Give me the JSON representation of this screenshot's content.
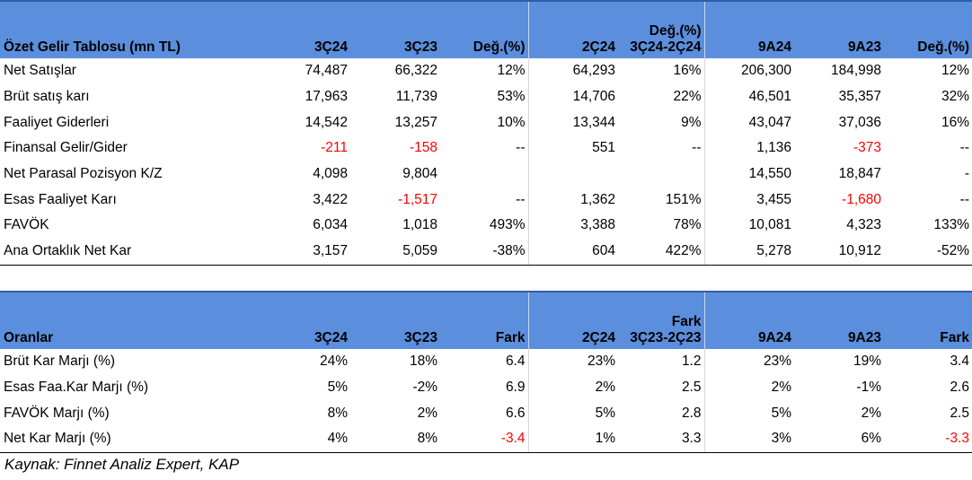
{
  "income": {
    "headers": [
      "Özet Gelir Tablosu (mn TL)",
      "3Ç24",
      "3Ç23",
      "Değ.(%)",
      "2Ç24",
      "Değ.(%)\n3Ç24-2Ç24",
      "9A24",
      "9A23",
      "Değ.(%)"
    ],
    "rows": [
      [
        "Net Satışlar",
        "74,487",
        "66,322",
        "12%",
        "64,293",
        "16%",
        "206,300",
        "184,998",
        "12%"
      ],
      [
        "Brüt satış karı",
        "17,963",
        "11,739",
        "53%",
        "14,706",
        "22%",
        "46,501",
        "35,357",
        "32%"
      ],
      [
        "Faaliyet Giderleri",
        "14,542",
        "13,257",
        "10%",
        "13,344",
        "9%",
        "43,047",
        "37,036",
        "16%"
      ],
      [
        "Finansal Gelir/Gider",
        "-211",
        "-158",
        "--",
        "551",
        "--",
        "1,136",
        "-373",
        "--"
      ],
      [
        "Net Parasal Pozisyon K/Z",
        "4,098",
        "9,804",
        "",
        "",
        "",
        "14,550",
        "18,847",
        "-"
      ],
      [
        "Esas Faaliyet Karı",
        "3,422",
        "-1,517",
        "--",
        "1,362",
        "151%",
        "3,455",
        "-1,680",
        "--"
      ],
      [
        "FAVÖK",
        "6,034",
        "1,018",
        "493%",
        "3,388",
        "78%",
        "10,081",
        "4,323",
        "133%"
      ],
      [
        "Ana Ortaklık Net Kar",
        "3,157",
        "5,059",
        "-38%",
        "604",
        "422%",
        "5,278",
        "10,912",
        "-52%"
      ]
    ]
  },
  "ratios": {
    "headers": [
      "Oranlar",
      "3Ç24",
      "3Ç23",
      "Fark",
      "2Ç24",
      "Fark\n3Ç23-2Ç23",
      "9A24",
      "9A23",
      "Fark"
    ],
    "rows": [
      [
        "Brüt Kar Marjı (%)",
        "24%",
        "18%",
        "6.4",
        "23%",
        "1.2",
        "23%",
        "19%",
        "3.4"
      ],
      [
        "Esas Faa.Kar Marjı (%)",
        "5%",
        "-2%",
        "6.9",
        "2%",
        "2.5",
        "2%",
        "-1%",
        "2.6"
      ],
      [
        "FAVÖK Marjı (%)",
        "8%",
        "2%",
        "6.6",
        "5%",
        "2.8",
        "5%",
        "2%",
        "2.5"
      ],
      [
        "Net Kar Marjı (%)",
        "4%",
        "8%",
        "-3.4",
        "1%",
        "3.3",
        "3%",
        "6%",
        "-3.3"
      ]
    ]
  },
  "red_cells": {
    "income": [
      [
        3,
        1
      ],
      [
        3,
        2
      ],
      [
        3,
        7
      ],
      [
        5,
        2
      ],
      [
        5,
        7
      ]
    ],
    "ratios": [
      [
        3,
        3
      ],
      [
        3,
        8
      ]
    ]
  },
  "colors": {
    "header_bg": "#5b8edc",
    "negative": "#ff0000"
  },
  "source": "Kaynak: Finnet Analiz Expert, KAP"
}
